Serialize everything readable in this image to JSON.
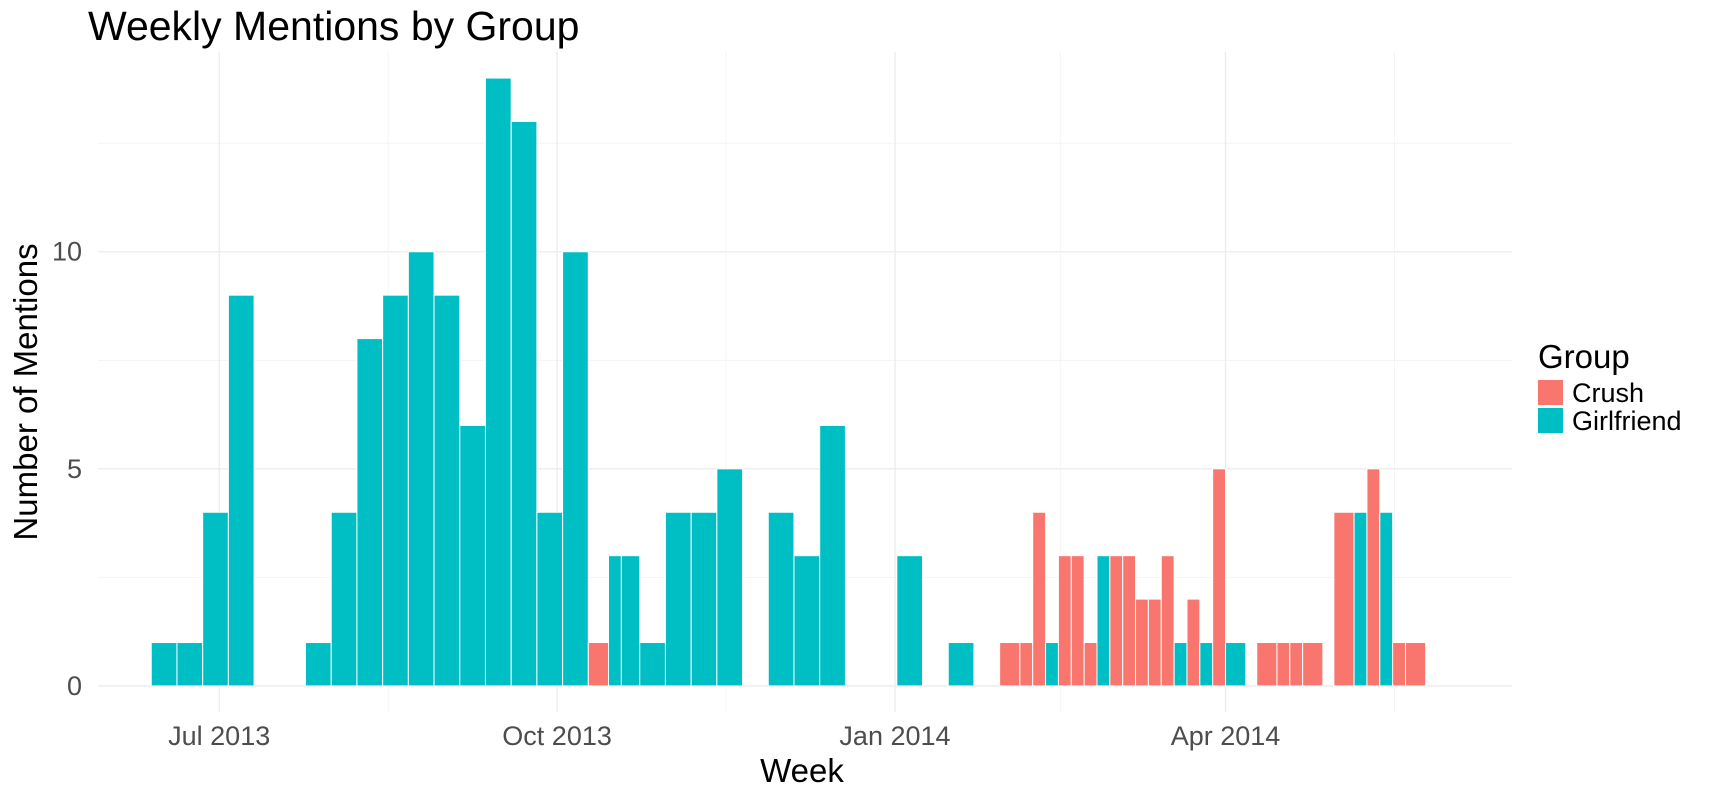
{
  "chart_data": {
    "type": "bar",
    "title": "Weekly Mentions by Group",
    "xlabel": "Week",
    "ylabel": "Number of Mentions",
    "xlim": [
      "2013-05-29",
      "2014-06-18"
    ],
    "ylim": [
      -0.6,
      14.6
    ],
    "x_ticks": [
      {
        "date": "2013-07-01",
        "label": "Jul 2013"
      },
      {
        "date": "2013-10-01",
        "label": "Oct 2013"
      },
      {
        "date": "2014-01-01",
        "label": "Jan 2014"
      },
      {
        "date": "2014-04-01",
        "label": "Apr 2014"
      }
    ],
    "y_ticks": [
      0,
      5,
      10
    ],
    "grid": true,
    "legend": {
      "title": "Group",
      "position": "right"
    },
    "series": [
      {
        "name": "Crush",
        "color": "#F8766D",
        "points": [
          {
            "week": "2013-10-13",
            "value": 1
          },
          {
            "week": "2014-02-02",
            "value": 1
          },
          {
            "week": "2014-02-06",
            "value": 1
          },
          {
            "week": "2014-02-09",
            "value": 4
          },
          {
            "week": "2014-02-16",
            "value": 3
          },
          {
            "week": "2014-02-20",
            "value": 3
          },
          {
            "week": "2014-02-23",
            "value": 1
          },
          {
            "week": "2014-03-02",
            "value": 3
          },
          {
            "week": "2014-03-06",
            "value": 3
          },
          {
            "week": "2014-03-09",
            "value": 2
          },
          {
            "week": "2014-03-13",
            "value": 2
          },
          {
            "week": "2014-03-16",
            "value": 3
          },
          {
            "week": "2014-03-23",
            "value": 2
          },
          {
            "week": "2014-03-30",
            "value": 5
          },
          {
            "week": "2014-04-13",
            "value": 1
          },
          {
            "week": "2014-04-17",
            "value": 1
          },
          {
            "week": "2014-04-20",
            "value": 1
          },
          {
            "week": "2014-04-24",
            "value": 1
          },
          {
            "week": "2014-05-04",
            "value": 4
          },
          {
            "week": "2014-05-11",
            "value": 5
          },
          {
            "week": "2014-05-18",
            "value": 1
          },
          {
            "week": "2014-05-22",
            "value": 1
          }
        ]
      },
      {
        "name": "Girlfriend",
        "color": "#00BFC4",
        "points": [
          {
            "week": "2013-06-16",
            "value": 1
          },
          {
            "week": "2013-06-23",
            "value": 1
          },
          {
            "week": "2013-06-30",
            "value": 4
          },
          {
            "week": "2013-07-07",
            "value": 9
          },
          {
            "week": "2013-07-28",
            "value": 1
          },
          {
            "week": "2013-08-04",
            "value": 4
          },
          {
            "week": "2013-08-11",
            "value": 8
          },
          {
            "week": "2013-08-18",
            "value": 9
          },
          {
            "week": "2013-08-25",
            "value": 10
          },
          {
            "week": "2013-09-01",
            "value": 9
          },
          {
            "week": "2013-09-08",
            "value": 6
          },
          {
            "week": "2013-09-15",
            "value": 14
          },
          {
            "week": "2013-09-22",
            "value": 13
          },
          {
            "week": "2013-09-29",
            "value": 4
          },
          {
            "week": "2013-10-06",
            "value": 10
          },
          {
            "week": "2013-10-17",
            "value": 3
          },
          {
            "week": "2013-10-20",
            "value": 3
          },
          {
            "week": "2013-10-27",
            "value": 1
          },
          {
            "week": "2013-11-03",
            "value": 4
          },
          {
            "week": "2013-11-10",
            "value": 4
          },
          {
            "week": "2013-11-17",
            "value": 5
          },
          {
            "week": "2013-12-01",
            "value": 4
          },
          {
            "week": "2013-12-08",
            "value": 3
          },
          {
            "week": "2013-12-15",
            "value": 6
          },
          {
            "week": "2014-01-05",
            "value": 3
          },
          {
            "week": "2014-01-19",
            "value": 1
          },
          {
            "week": "2014-02-13",
            "value": 1
          },
          {
            "week": "2014-02-27",
            "value": 3
          },
          {
            "week": "2014-03-20",
            "value": 1
          },
          {
            "week": "2014-03-27",
            "value": 1
          },
          {
            "week": "2014-04-03",
            "value": 1
          },
          {
            "week": "2014-05-08",
            "value": 4
          },
          {
            "week": "2014-05-15",
            "value": 4
          }
        ]
      }
    ]
  }
}
